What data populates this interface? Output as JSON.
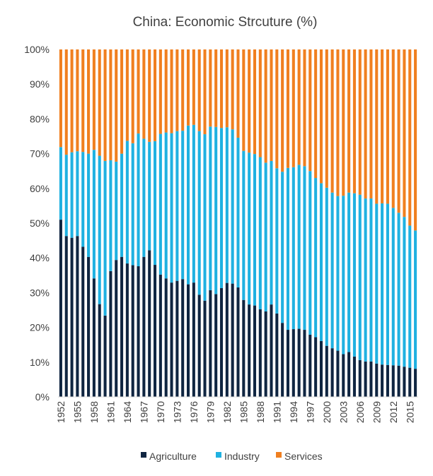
{
  "chart_data": {
    "type": "bar",
    "stacked": true,
    "title": "China: Economic Strcuture (%)",
    "xlabel": "",
    "ylabel": "",
    "ylim": [
      0,
      100
    ],
    "y_ticks": [
      "0%",
      "10%",
      "20%",
      "30%",
      "40%",
      "50%",
      "60%",
      "70%",
      "80%",
      "90%",
      "100%"
    ],
    "x_tick_labels": [
      "1952",
      "1955",
      "1958",
      "1961",
      "1964",
      "1967",
      "1970",
      "1973",
      "1976",
      "1979",
      "1982",
      "1985",
      "1988",
      "1991",
      "1994",
      "1997",
      "2000",
      "2003",
      "2006",
      "2009",
      "2012",
      "2015"
    ],
    "legend_position": "bottom",
    "categories": [
      "1952",
      "1953",
      "1954",
      "1955",
      "1956",
      "1957",
      "1958",
      "1959",
      "1960",
      "1961",
      "1962",
      "1963",
      "1964",
      "1965",
      "1966",
      "1967",
      "1968",
      "1969",
      "1970",
      "1971",
      "1972",
      "1973",
      "1974",
      "1975",
      "1976",
      "1977",
      "1978",
      "1979",
      "1980",
      "1981",
      "1982",
      "1983",
      "1984",
      "1985",
      "1986",
      "1987",
      "1988",
      "1989",
      "1990",
      "1991",
      "1992",
      "1993",
      "1994",
      "1995",
      "1996",
      "1997",
      "1998",
      "1999",
      "2000",
      "2001",
      "2002",
      "2003",
      "2004",
      "2005",
      "2006",
      "2007",
      "2008",
      "2009",
      "2010",
      "2011",
      "2012",
      "2013",
      "2014",
      "2015",
      "2016"
    ],
    "series": [
      {
        "name": "Agriculture",
        "color": "#0f2541",
        "values": [
          51,
          46.3,
          45.8,
          46.3,
          43.2,
          40.3,
          34.1,
          26.7,
          23.4,
          36.2,
          39.4,
          40.3,
          38.4,
          37.9,
          37.6,
          40.3,
          42.2,
          38,
          35.2,
          34.1,
          32.9,
          33.4,
          33.9,
          32.4,
          32.9,
          29.4,
          27.7,
          30.7,
          29.6,
          31.3,
          32.8,
          32.6,
          31.5,
          27.9,
          26.6,
          26.3,
          25.2,
          24.6,
          26.6,
          24,
          21.3,
          19.3,
          19.5,
          19.6,
          19.3,
          17.9,
          17.2,
          16.1,
          14.7,
          14,
          13.3,
          12.3,
          12.9,
          11.6,
          10.6,
          10.2,
          10.2,
          9.6,
          9.3,
          9.2,
          9.1,
          9,
          8.7,
          8.4,
          8.1
        ]
      },
      {
        "name": "Industry",
        "color": "#1fb1e1",
        "values": [
          20.9,
          23.4,
          24.6,
          24.4,
          27.3,
          29.7,
          37,
          42.7,
          44.5,
          31.9,
          28.3,
          29.7,
          35.3,
          35.1,
          38.2,
          34,
          31.2,
          35.6,
          40.5,
          42,
          43,
          43.1,
          42.7,
          45.7,
          45.4,
          47.1,
          47.9,
          47.1,
          48.1,
          46.1,
          44.8,
          44.4,
          43.1,
          42.9,
          43.7,
          43.6,
          43.8,
          42.8,
          41.3,
          41.8,
          43.5,
          46.6,
          46.6,
          47.2,
          47.1,
          47.1,
          45.8,
          45.4,
          45.5,
          44.8,
          44.5,
          45.6,
          45.9,
          47,
          47.6,
          46.9,
          46.9,
          46,
          46.4,
          46.4,
          45.3,
          44,
          43.1,
          40.9,
          39.8
        ]
      },
      {
        "name": "Services",
        "color": "#f07f1f",
        "values": [
          28.1,
          30.3,
          29.6,
          29.3,
          29.5,
          30,
          28.9,
          30.6,
          32.1,
          31.9,
          32.3,
          30,
          26.3,
          27,
          24.2,
          25.7,
          26.6,
          26.4,
          24.3,
          23.9,
          24.1,
          23.5,
          23.4,
          21.9,
          21.7,
          23.5,
          24.4,
          22.2,
          22.3,
          22.6,
          22.4,
          23,
          25.4,
          29.2,
          29.7,
          30.1,
          31,
          32.6,
          32.1,
          34.2,
          35.2,
          34.1,
          33.9,
          33.2,
          33.6,
          35,
          37,
          38.5,
          39.8,
          41.2,
          42.2,
          42.1,
          41.2,
          41.4,
          41.8,
          42.9,
          42.9,
          44.4,
          44.3,
          44.4,
          45.6,
          47,
          48.2,
          50.7,
          52.1
        ]
      }
    ]
  }
}
